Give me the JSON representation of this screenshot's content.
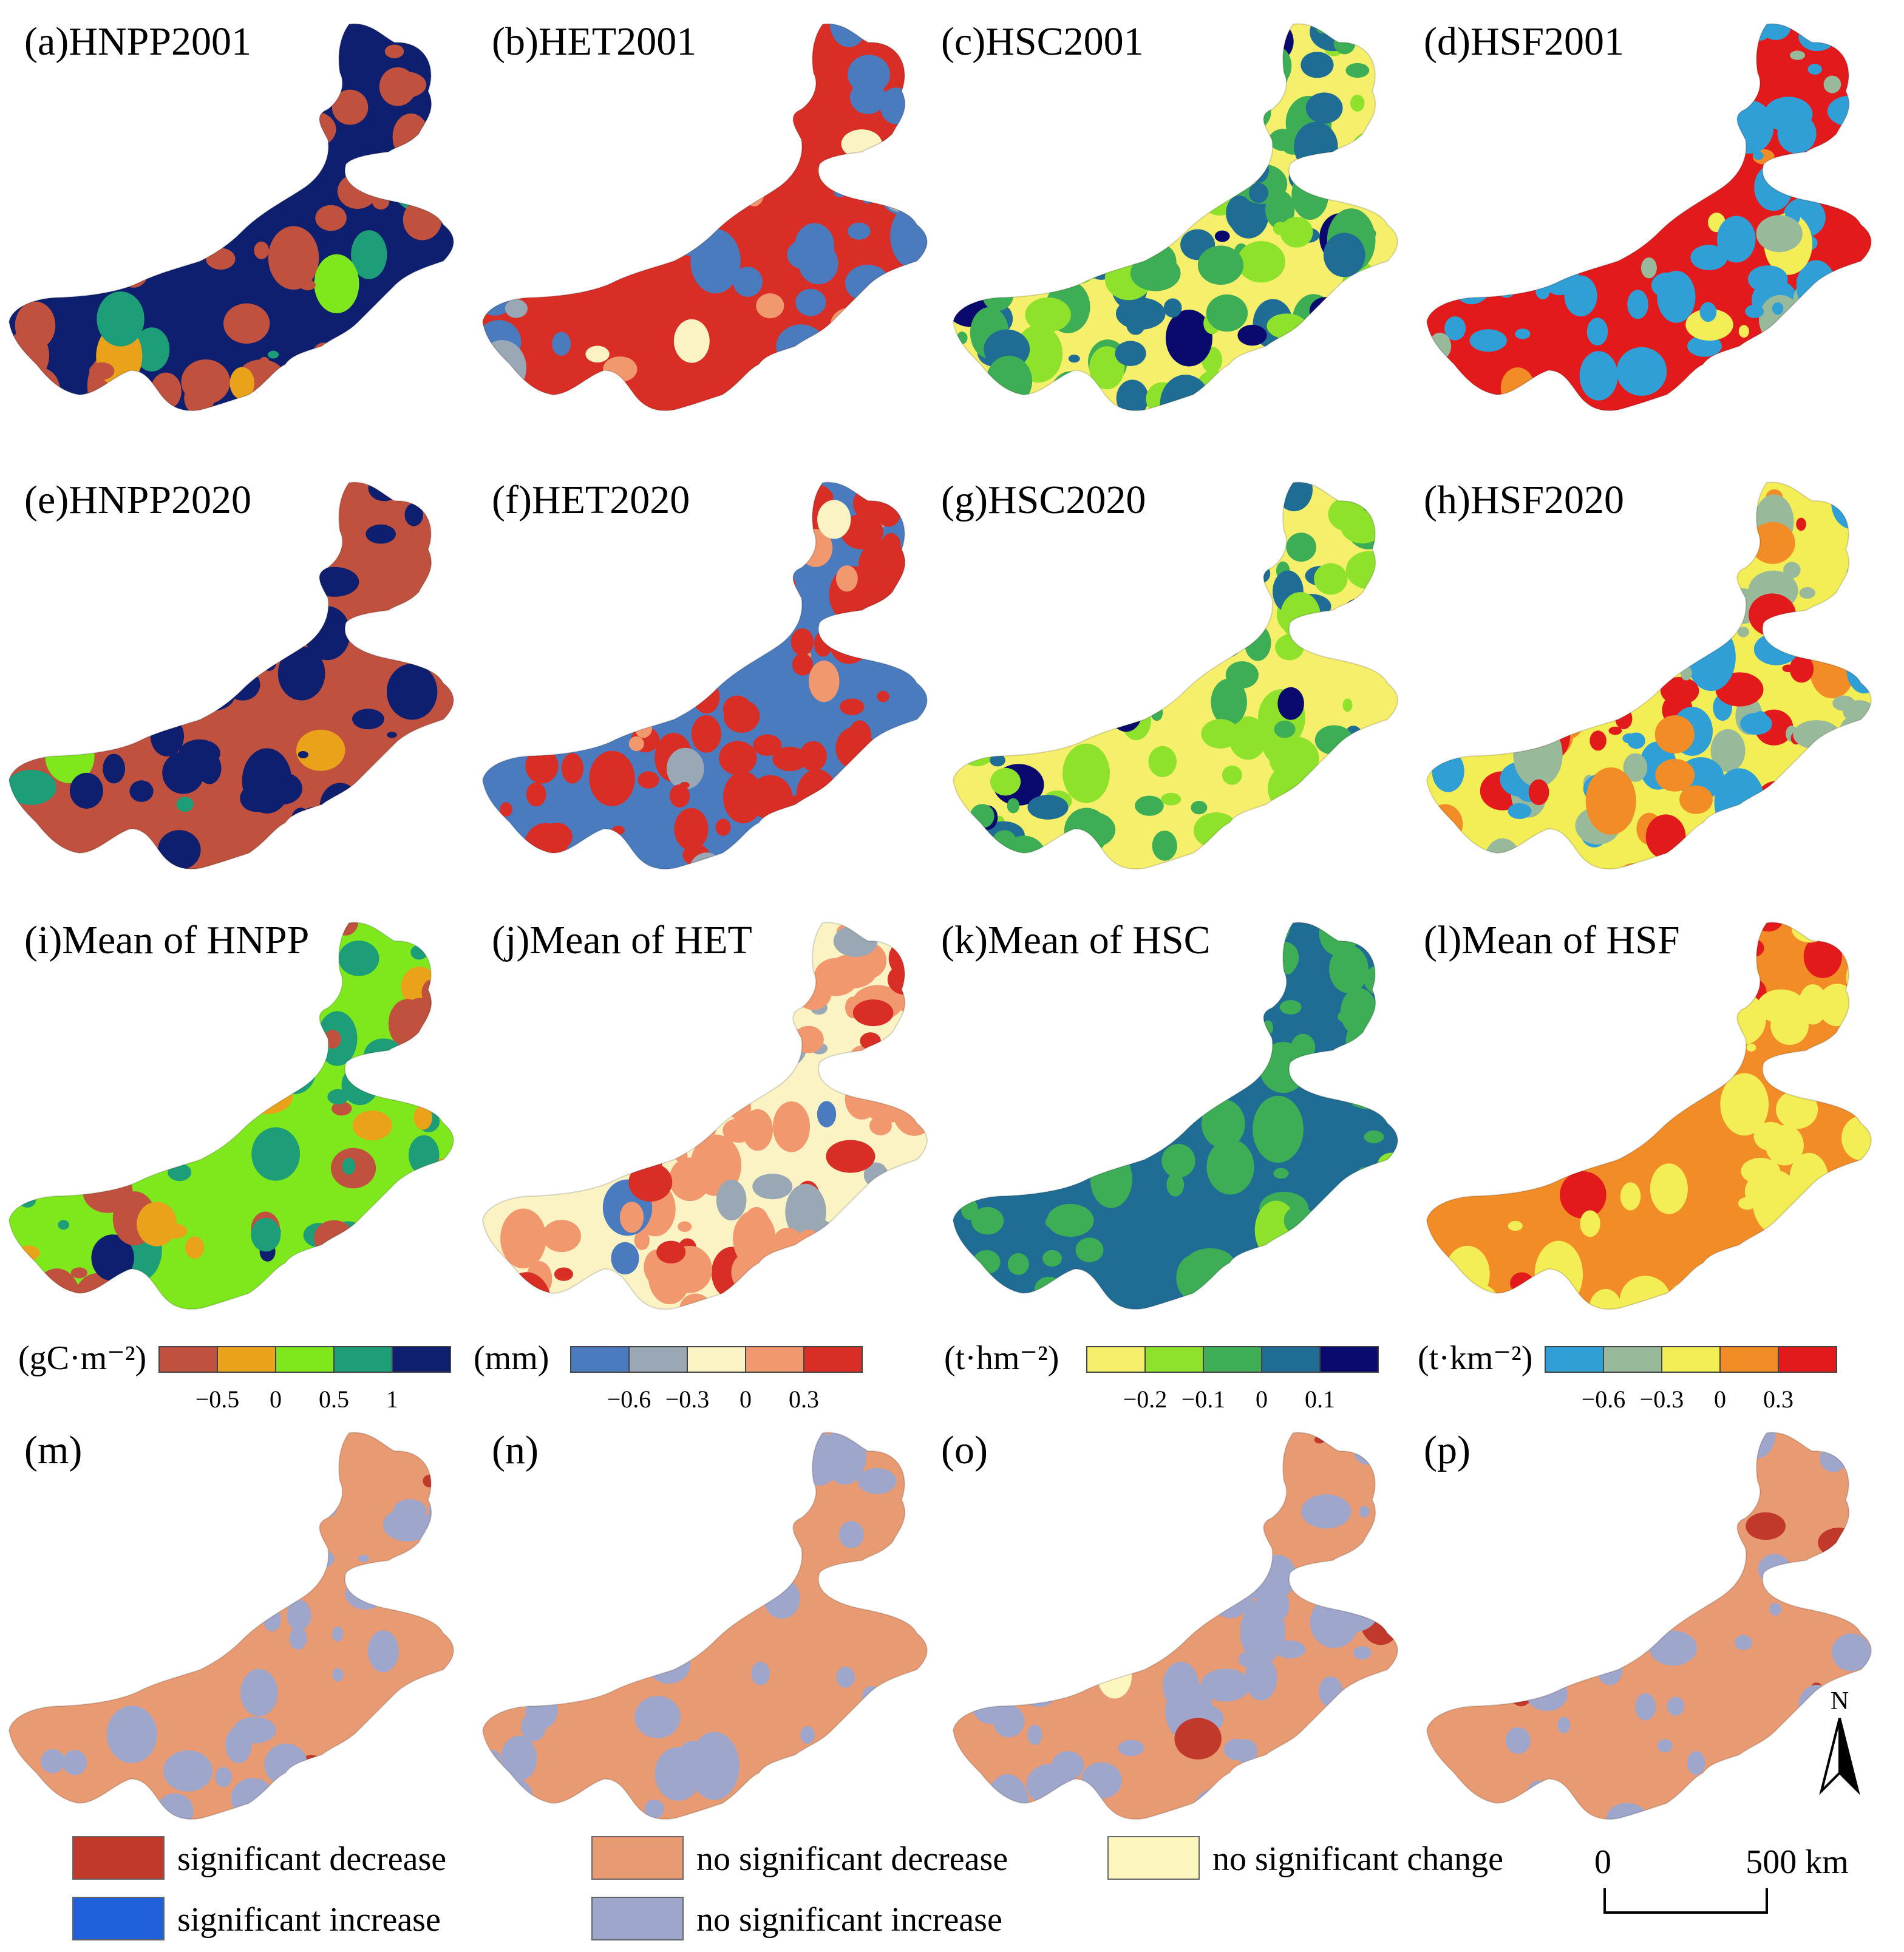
{
  "colors": {
    "hnpp": [
      "#c0513f",
      "#e9a21a",
      "#7ee81d",
      "#1d9e78",
      "#0d1f6e"
    ],
    "het": [
      "#4b7bbf",
      "#9aa8b5",
      "#fbf3c4",
      "#f2986e",
      "#d82e25"
    ],
    "hsc": [
      "#f5ef6b",
      "#8fe22c",
      "#3dae55",
      "#1f6d94",
      "#0a0a6e"
    ],
    "hsf": [
      "#2f9fd6",
      "#98b99a",
      "#f3ee55",
      "#f28c26",
      "#e31a1c"
    ],
    "trend": [
      "#c0392b",
      "#2060d8",
      "#e89a72",
      "#9fa6cc",
      "#fdf6bf"
    ]
  },
  "panels": [
    {
      "label": "(a)HNPP2001",
      "scheme": "hnpp",
      "mix": [
        0.18,
        0.01,
        0.01,
        0.05,
        0.75
      ]
    },
    {
      "label": "(b)HET2001",
      "scheme": "het",
      "mix": [
        0.22,
        0.02,
        0.02,
        0.02,
        0.72
      ]
    },
    {
      "label": "(c)HSC2001",
      "scheme": "hsc",
      "mix": [
        0.38,
        0.15,
        0.2,
        0.2,
        0.07
      ]
    },
    {
      "label": "(d)HSF2001",
      "scheme": "hsf",
      "mix": [
        0.38,
        0.05,
        0.05,
        0.04,
        0.48
      ]
    },
    {
      "label": "(e)HNPP2020",
      "scheme": "hnpp",
      "mix": [
        0.55,
        0.02,
        0.02,
        0.02,
        0.39
      ]
    },
    {
      "label": "(f)HET2020",
      "scheme": "het",
      "mix": [
        0.5,
        0.04,
        0.02,
        0.04,
        0.4
      ]
    },
    {
      "label": "(g)HSC2020",
      "scheme": "hsc",
      "mix": [
        0.42,
        0.25,
        0.2,
        0.08,
        0.05
      ]
    },
    {
      "label": "(h)HSF2020",
      "scheme": "hsf",
      "mix": [
        0.2,
        0.2,
        0.25,
        0.15,
        0.2
      ]
    },
    {
      "label": "(i)Mean of HNPP",
      "scheme": "hnpp",
      "mix": [
        0.1,
        0.15,
        0.55,
        0.15,
        0.05
      ]
    },
    {
      "label": "(j)Mean of HET",
      "scheme": "het",
      "mix": [
        0.02,
        0.05,
        0.45,
        0.35,
        0.13
      ]
    },
    {
      "label": "(k)Mean of HSC",
      "scheme": "hsc",
      "mix": [
        0.0,
        0.02,
        0.45,
        0.53,
        0.0
      ]
    },
    {
      "label": "(l)Mean of HSF",
      "scheme": "hsf",
      "mix": [
        0.0,
        0.0,
        0.25,
        0.68,
        0.07
      ]
    },
    {
      "label": "(m)",
      "scheme": "trend",
      "mix": [
        0.01,
        0.0,
        0.74,
        0.25,
        0.0
      ]
    },
    {
      "label": "(n)",
      "scheme": "trend",
      "mix": [
        0.02,
        0.0,
        0.8,
        0.18,
        0.0
      ]
    },
    {
      "label": "(o)",
      "scheme": "trend",
      "mix": [
        0.04,
        0.0,
        0.62,
        0.33,
        0.01
      ]
    },
    {
      "label": "(p)",
      "scheme": "trend",
      "mix": [
        0.01,
        0.0,
        0.82,
        0.17,
        0.0
      ]
    }
  ],
  "colorbars": [
    {
      "unit": "(gC·m⁻²)",
      "scheme": "hnpp",
      "ticks": [
        "−0.5",
        "0",
        "0.5",
        "1"
      ]
    },
    {
      "unit": "(mm)",
      "scheme": "het",
      "ticks": [
        "−0.6",
        "−0.3",
        "0",
        "0.3"
      ]
    },
    {
      "unit": "(t·hm⁻²)",
      "scheme": "hsc",
      "ticks": [
        "−0.2",
        "−0.1",
        "0",
        "0.1"
      ]
    },
    {
      "unit": "(t·km⁻²)",
      "scheme": "hsf",
      "ticks": [
        "−0.6",
        "−0.3",
        "0",
        "0.3"
      ]
    }
  ],
  "legend": [
    {
      "label": "significant decrease",
      "color": "#c0392b"
    },
    {
      "label": "significant increase",
      "color": "#2060d8"
    },
    {
      "label": "no significant decrease",
      "color": "#e89a72"
    },
    {
      "label": "no significant increase",
      "color": "#9fa6cc"
    },
    {
      "label": "no significant change",
      "color": "#fdf6bf"
    }
  ],
  "north_label": "N",
  "scalebar": {
    "start": "0",
    "end": "500 km"
  }
}
